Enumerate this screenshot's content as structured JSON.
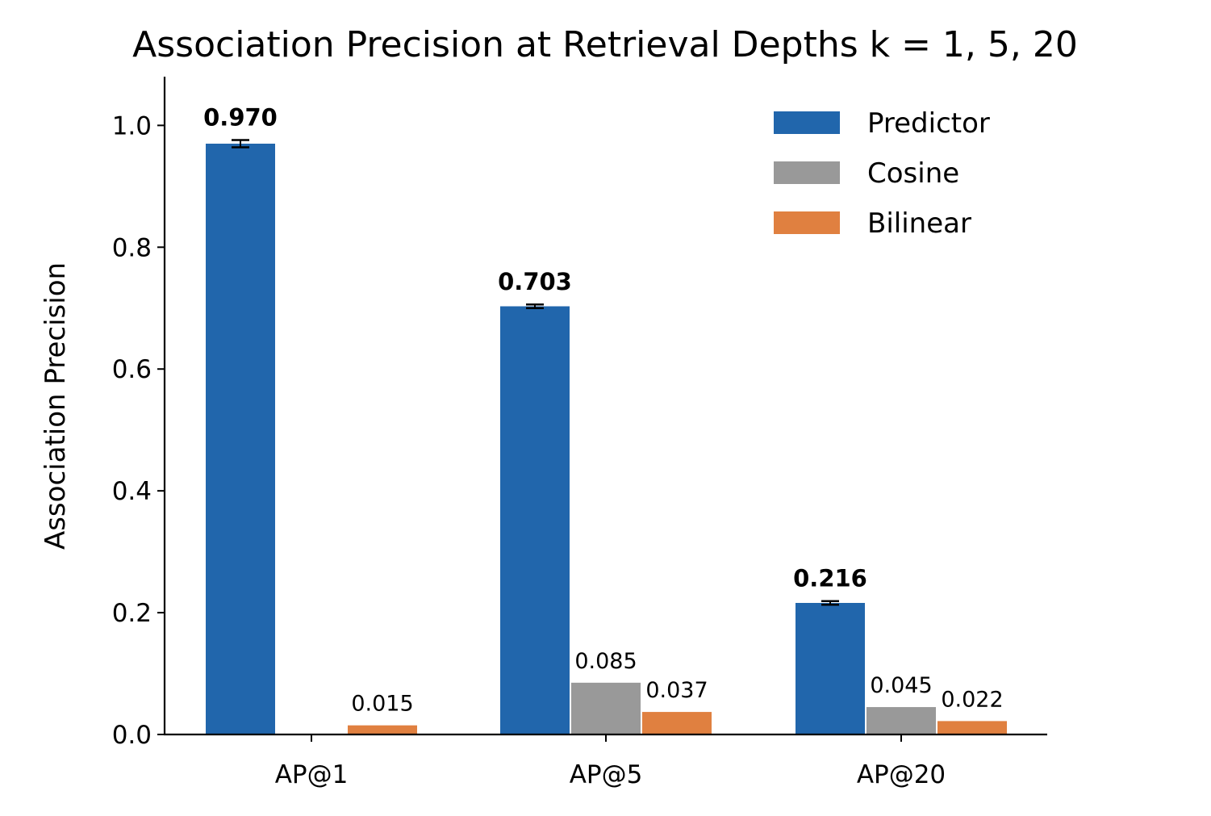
{
  "chart_data": {
    "type": "bar",
    "title": "Association Precision at Retrieval Depths k = 1, 5, 20",
    "xlabel": "",
    "ylabel": "Association Precision",
    "categories": [
      "AP@1",
      "AP@5",
      "AP@20"
    ],
    "ylim": [
      0,
      1.08
    ],
    "yticks": [
      0.0,
      0.2,
      0.4,
      0.6,
      0.8,
      1.0
    ],
    "ytick_labels": [
      "0.0",
      "0.2",
      "0.4",
      "0.6",
      "0.8",
      "1.0"
    ],
    "legend_position": "top-right",
    "series": [
      {
        "name": "Predictor",
        "color": "#2166ac",
        "values": [
          0.97,
          0.703,
          0.216
        ],
        "labels": [
          "0.970",
          "0.703",
          "0.216"
        ],
        "errors": [
          0.006,
          0.003,
          0.003
        ],
        "label_style": "bold"
      },
      {
        "name": "Cosine",
        "color": "#999999",
        "values": [
          0.0,
          0.085,
          0.045
        ],
        "labels": [
          null,
          "0.085",
          "0.045"
        ],
        "label_style": "normal"
      },
      {
        "name": "Bilinear",
        "color": "#e08040",
        "values": [
          0.015,
          0.037,
          0.022
        ],
        "labels": [
          "0.015",
          "0.037",
          "0.022"
        ],
        "label_style": "normal"
      }
    ]
  }
}
